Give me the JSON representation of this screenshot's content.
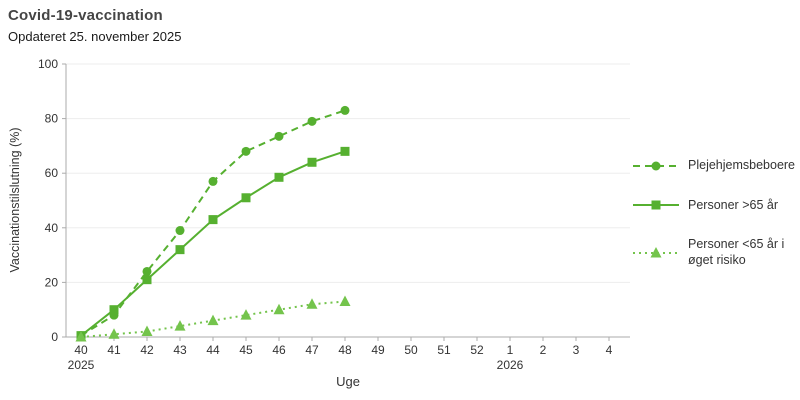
{
  "header": {
    "title": "Covid-19-vaccination",
    "subtitle": "Opdateret 25. november 2025"
  },
  "chart_data": {
    "type": "line",
    "title": "Covid-19-vaccination",
    "subtitle": "Opdateret 25. november 2025",
    "xlabel": "Uge",
    "ylabel": "Vaccinationstilslutning (%)",
    "ylim": [
      0,
      100
    ],
    "grid": "horizontal",
    "legend_position": "right",
    "x_axis": {
      "label": "Uge",
      "tick_labels": [
        "40",
        "41",
        "42",
        "43",
        "44",
        "45",
        "46",
        "47",
        "48",
        "49",
        "50",
        "51",
        "52",
        "1",
        "2",
        "3",
        "4"
      ],
      "year_markers": [
        {
          "tick_index": 0,
          "label": "2025"
        },
        {
          "tick_index": 13,
          "label": "2026"
        }
      ]
    },
    "y_axis": {
      "label": "Vaccinationstilslutning (%)",
      "ticks": [
        0,
        20,
        40,
        60,
        80,
        100
      ]
    },
    "series": [
      {
        "name": "Plejehjemsbeboere",
        "marker": "circle",
        "line_style": "dashed",
        "color": "#56b030",
        "weeks": [
          40,
          41,
          42,
          43,
          44,
          45,
          46,
          47,
          48
        ],
        "values": [
          0.5,
          8,
          24,
          39,
          57,
          68,
          73.5,
          79,
          83
        ]
      },
      {
        "name": "Personer >65 år",
        "marker": "square",
        "line_style": "solid",
        "color": "#56b030",
        "weeks": [
          40,
          41,
          42,
          43,
          44,
          45,
          46,
          47,
          48
        ],
        "values": [
          0.5,
          10,
          21,
          32,
          43,
          51,
          58.5,
          64,
          68
        ]
      },
      {
        "name": "Personer <65 år i øget risiko",
        "marker": "triangle",
        "line_style": "dotted",
        "color": "#74c44c",
        "weeks": [
          40,
          41,
          42,
          43,
          44,
          45,
          46,
          47,
          48
        ],
        "values": [
          0,
          1,
          2,
          4,
          6,
          8,
          10,
          12,
          13
        ]
      }
    ]
  },
  "colors": {
    "title": "#454545",
    "subtitle": "#1a1a1a",
    "text": "#333333",
    "grid": "#ededed",
    "axis": "#ababab"
  }
}
